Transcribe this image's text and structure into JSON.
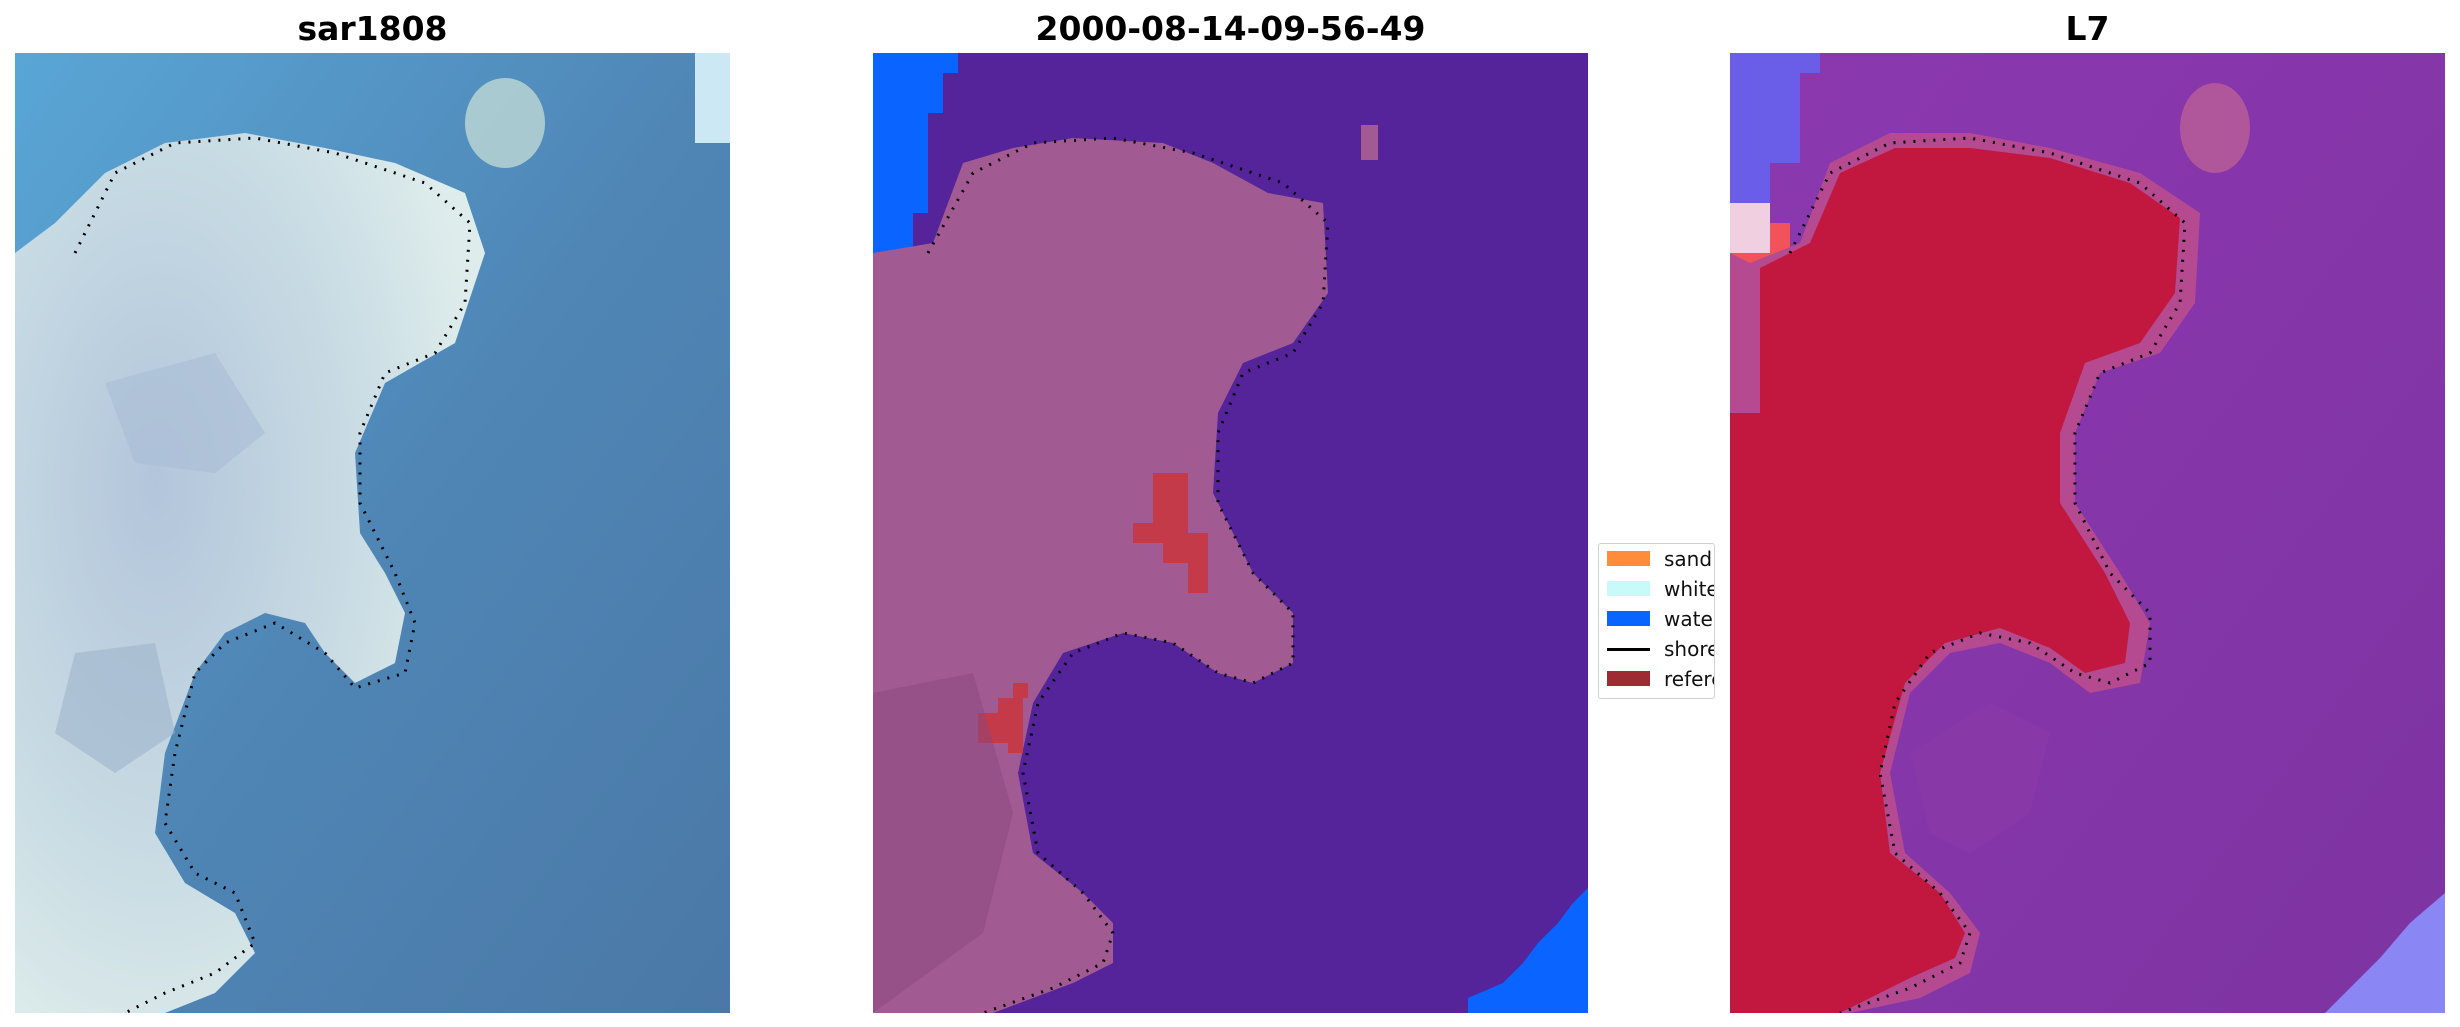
{
  "figure": {
    "panels": [
      {
        "title": "sar1808",
        "kind": "rgb-image"
      },
      {
        "title": "2000-08-14-09-56-49",
        "kind": "classified-image"
      },
      {
        "title": "L7",
        "kind": "mndwi-image"
      }
    ]
  },
  "legend": {
    "items": [
      {
        "label": "sand",
        "type": "patch",
        "color": "#ff8c3b"
      },
      {
        "label": "whitewater",
        "type": "patch",
        "color": "#c8fafa"
      },
      {
        "label": "water",
        "type": "patch",
        "color": "#0a64ff"
      },
      {
        "label": "shoreline",
        "type": "line",
        "color": "#000000"
      },
      {
        "label": "reference",
        "type": "patch",
        "color": "#9e2a32"
      }
    ]
  },
  "colors": {
    "rgb_water": "#4f86b6",
    "rgb_land": "#c9dbe2",
    "class_background": "#55249a",
    "class_land": "#a25a92",
    "class_water": "#0a64ff",
    "class_whitewater": "#c6f0f4",
    "class_reference": "#c43a48",
    "index_background": "#8a3aa6",
    "index_land": "#c21840"
  }
}
